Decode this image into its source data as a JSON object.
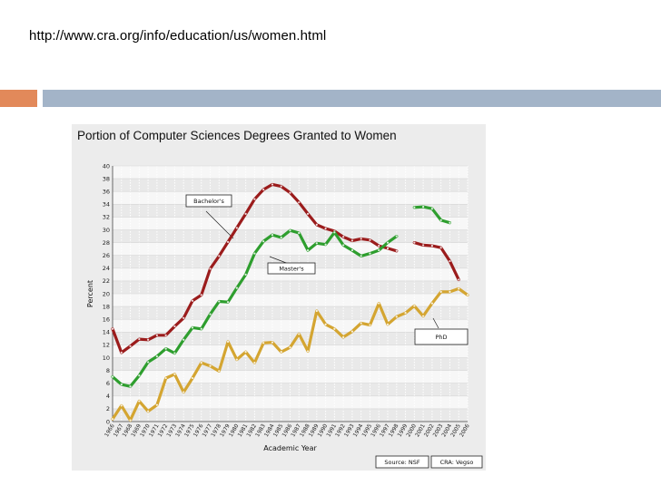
{
  "slide": {
    "url_text": "http://www.cra.org/info/education/us/women.html"
  },
  "colors": {
    "accent_left": "#e2895a",
    "accent_bar": "#a3b4c8",
    "bachelors": "#9b1c1c",
    "masters": "#2e9e2e",
    "phd": "#d4a531"
  },
  "chart_data": {
    "type": "line",
    "title": "Portion of Computer Sciences Degrees Granted to Women",
    "xlabel": "Academic Year",
    "ylabel": "Percent",
    "ylim": [
      0,
      40
    ],
    "yticks": [
      0,
      2,
      4,
      6,
      8,
      10,
      12,
      14,
      16,
      18,
      20,
      22,
      24,
      26,
      28,
      30,
      32,
      34,
      36,
      38,
      40
    ],
    "xlim": [
      1966,
      2006
    ],
    "xticks": [
      1966,
      1967,
      1968,
      1969,
      1970,
      1971,
      1972,
      1973,
      1974,
      1975,
      1976,
      1977,
      1978,
      1979,
      1980,
      1981,
      1982,
      1983,
      1984,
      1985,
      1986,
      1987,
      1988,
      1989,
      1990,
      1991,
      1992,
      1993,
      1994,
      1995,
      1996,
      1997,
      1998,
      1999,
      2000,
      2001,
      2002,
      2003,
      2004,
      2005,
      2006
    ],
    "grid": true,
    "series": [
      {
        "name": "Bachelor's",
        "segments": [
          {
            "x": [
              1966,
              1967,
              1968,
              1969,
              1970,
              1971,
              1972,
              1973,
              1974,
              1975,
              1976,
              1977,
              1978,
              1979,
              1980,
              1981,
              1982,
              1983,
              1984,
              1985,
              1986,
              1987,
              1988,
              1989,
              1990,
              1991,
              1992,
              1993,
              1994,
              1995,
              1996,
              1997,
              1998
            ],
            "y": [
              14.5,
              10.8,
              11.8,
              12.9,
              12.8,
              13.5,
              13.5,
              14.9,
              16.2,
              18.9,
              19.8,
              23.9,
              25.9,
              28.1,
              30.3,
              32.5,
              34.8,
              36.3,
              37.1,
              36.8,
              35.8,
              34.3,
              32.5,
              30.8,
              30.2,
              29.8,
              28.9,
              28.3,
              28.6,
              28.4,
              27.5,
              27.1,
              26.7
            ]
          },
          {
            "x": [
              2000,
              2001,
              2002,
              2003,
              2004,
              2005
            ],
            "y": [
              28.0,
              27.6,
              27.5,
              27.2,
              25.1,
              22.2
            ]
          }
        ]
      },
      {
        "name": "Master's",
        "segments": [
          {
            "x": [
              1966,
              1967,
              1968,
              1969,
              1970,
              1971,
              1972,
              1973,
              1974,
              1975,
              1976,
              1977,
              1978,
              1979,
              1980,
              1981,
              1982,
              1983,
              1984,
              1985,
              1986,
              1987,
              1988,
              1989,
              1990,
              1991,
              1992,
              1993,
              1994,
              1995,
              1996,
              1997,
              1998
            ],
            "y": [
              7.0,
              5.8,
              5.5,
              7.2,
              9.3,
              10.2,
              11.4,
              10.7,
              12.8,
              14.7,
              14.5,
              16.8,
              18.8,
              18.7,
              20.9,
              23.0,
              26.3,
              28.2,
              29.2,
              28.8,
              29.9,
              29.5,
              26.8,
              27.9,
              27.7,
              29.6,
              27.6,
              26.8,
              25.9,
              26.3,
              26.8,
              28.0,
              29.0
            ]
          },
          {
            "x": [
              2000,
              2001,
              2002,
              2003,
              2004
            ],
            "y": [
              33.5,
              33.6,
              33.3,
              31.5,
              31.1
            ]
          }
        ]
      },
      {
        "name": "PhD",
        "segments": [
          {
            "x": [
              1966,
              1967,
              1968,
              1969,
              1970,
              1971,
              1972,
              1973,
              1974,
              1975,
              1976,
              1977,
              1978,
              1979,
              1980,
              1981,
              1982,
              1983,
              1984,
              1985,
              1986,
              1987,
              1988,
              1989,
              1990,
              1991,
              1992,
              1993,
              1994,
              1995,
              1996,
              1997,
              1998,
              1999,
              2000,
              2001,
              2002,
              2003,
              2004,
              2005,
              2006
            ],
            "y": [
              0.4,
              2.5,
              0.2,
              3.2,
              1.6,
              2.6,
              6.8,
              7.4,
              4.6,
              6.8,
              9.2,
              8.7,
              7.9,
              12.5,
              9.7,
              10.9,
              9.2,
              12.3,
              12.4,
              10.9,
              11.6,
              13.7,
              11.0,
              17.3,
              15.2,
              14.5,
              13.2,
              14.1,
              15.4,
              15.1,
              18.5,
              15.2,
              16.4,
              17.0,
              18.1,
              16.5,
              18.5,
              20.3,
              20.3,
              20.8,
              19.8
            ]
          }
        ]
      }
    ],
    "annotations": [
      {
        "text": "Bachelor's"
      },
      {
        "text": "Master's"
      },
      {
        "text": "PhD"
      }
    ],
    "sources": [
      "Source: NSF",
      "CRA: Vegso"
    ]
  }
}
